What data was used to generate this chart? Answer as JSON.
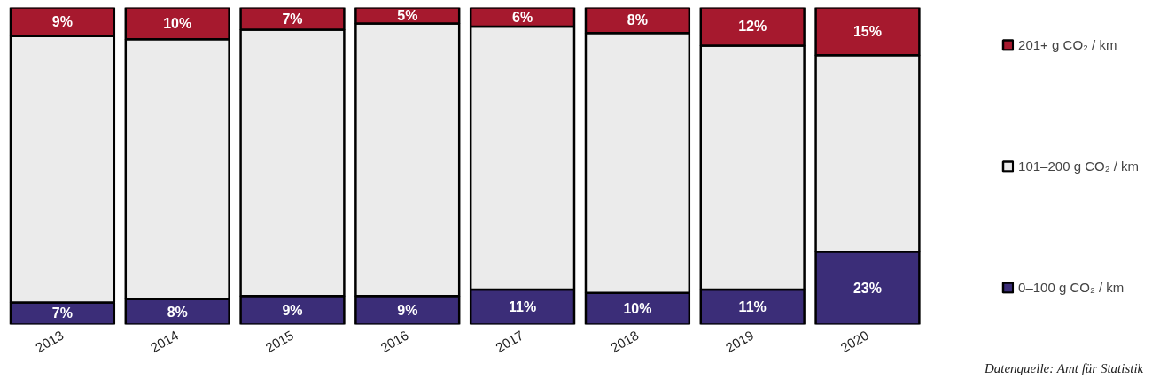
{
  "chart_data": {
    "type": "bar",
    "stacked": true,
    "categories": [
      "2013",
      "2014",
      "2015",
      "2016",
      "2017",
      "2018",
      "2019",
      "2020"
    ],
    "series": [
      {
        "name": "0–100 g CO₂ / km",
        "color": "#3b2d78",
        "values": [
          7,
          8,
          9,
          9,
          11,
          10,
          11,
          23
        ],
        "value_labels": [
          "7%",
          "8%",
          "9%",
          "9%",
          "11%",
          "10%",
          "11%",
          "23%"
        ]
      },
      {
        "name": "101–200 g CO₂ / km",
        "color": "#ebebeb",
        "values": [
          84,
          82,
          84,
          86,
          83,
          82,
          77,
          62
        ],
        "value_labels": [
          null,
          null,
          null,
          null,
          null,
          null,
          null,
          null
        ]
      },
      {
        "name": "201+ g CO₂ / km",
        "color": "#a6192e",
        "values": [
          9,
          10,
          7,
          5,
          6,
          8,
          12,
          15
        ],
        "value_labels": [
          "9%",
          "10%",
          "7%",
          "5%",
          "6%",
          "8%",
          "12%",
          "15%"
        ]
      }
    ],
    "ylim": [
      0,
      100
    ],
    "tick_labels": "x",
    "legend": "right",
    "annotations": [
      "Datenquelle: Amt für Statistik"
    ]
  }
}
